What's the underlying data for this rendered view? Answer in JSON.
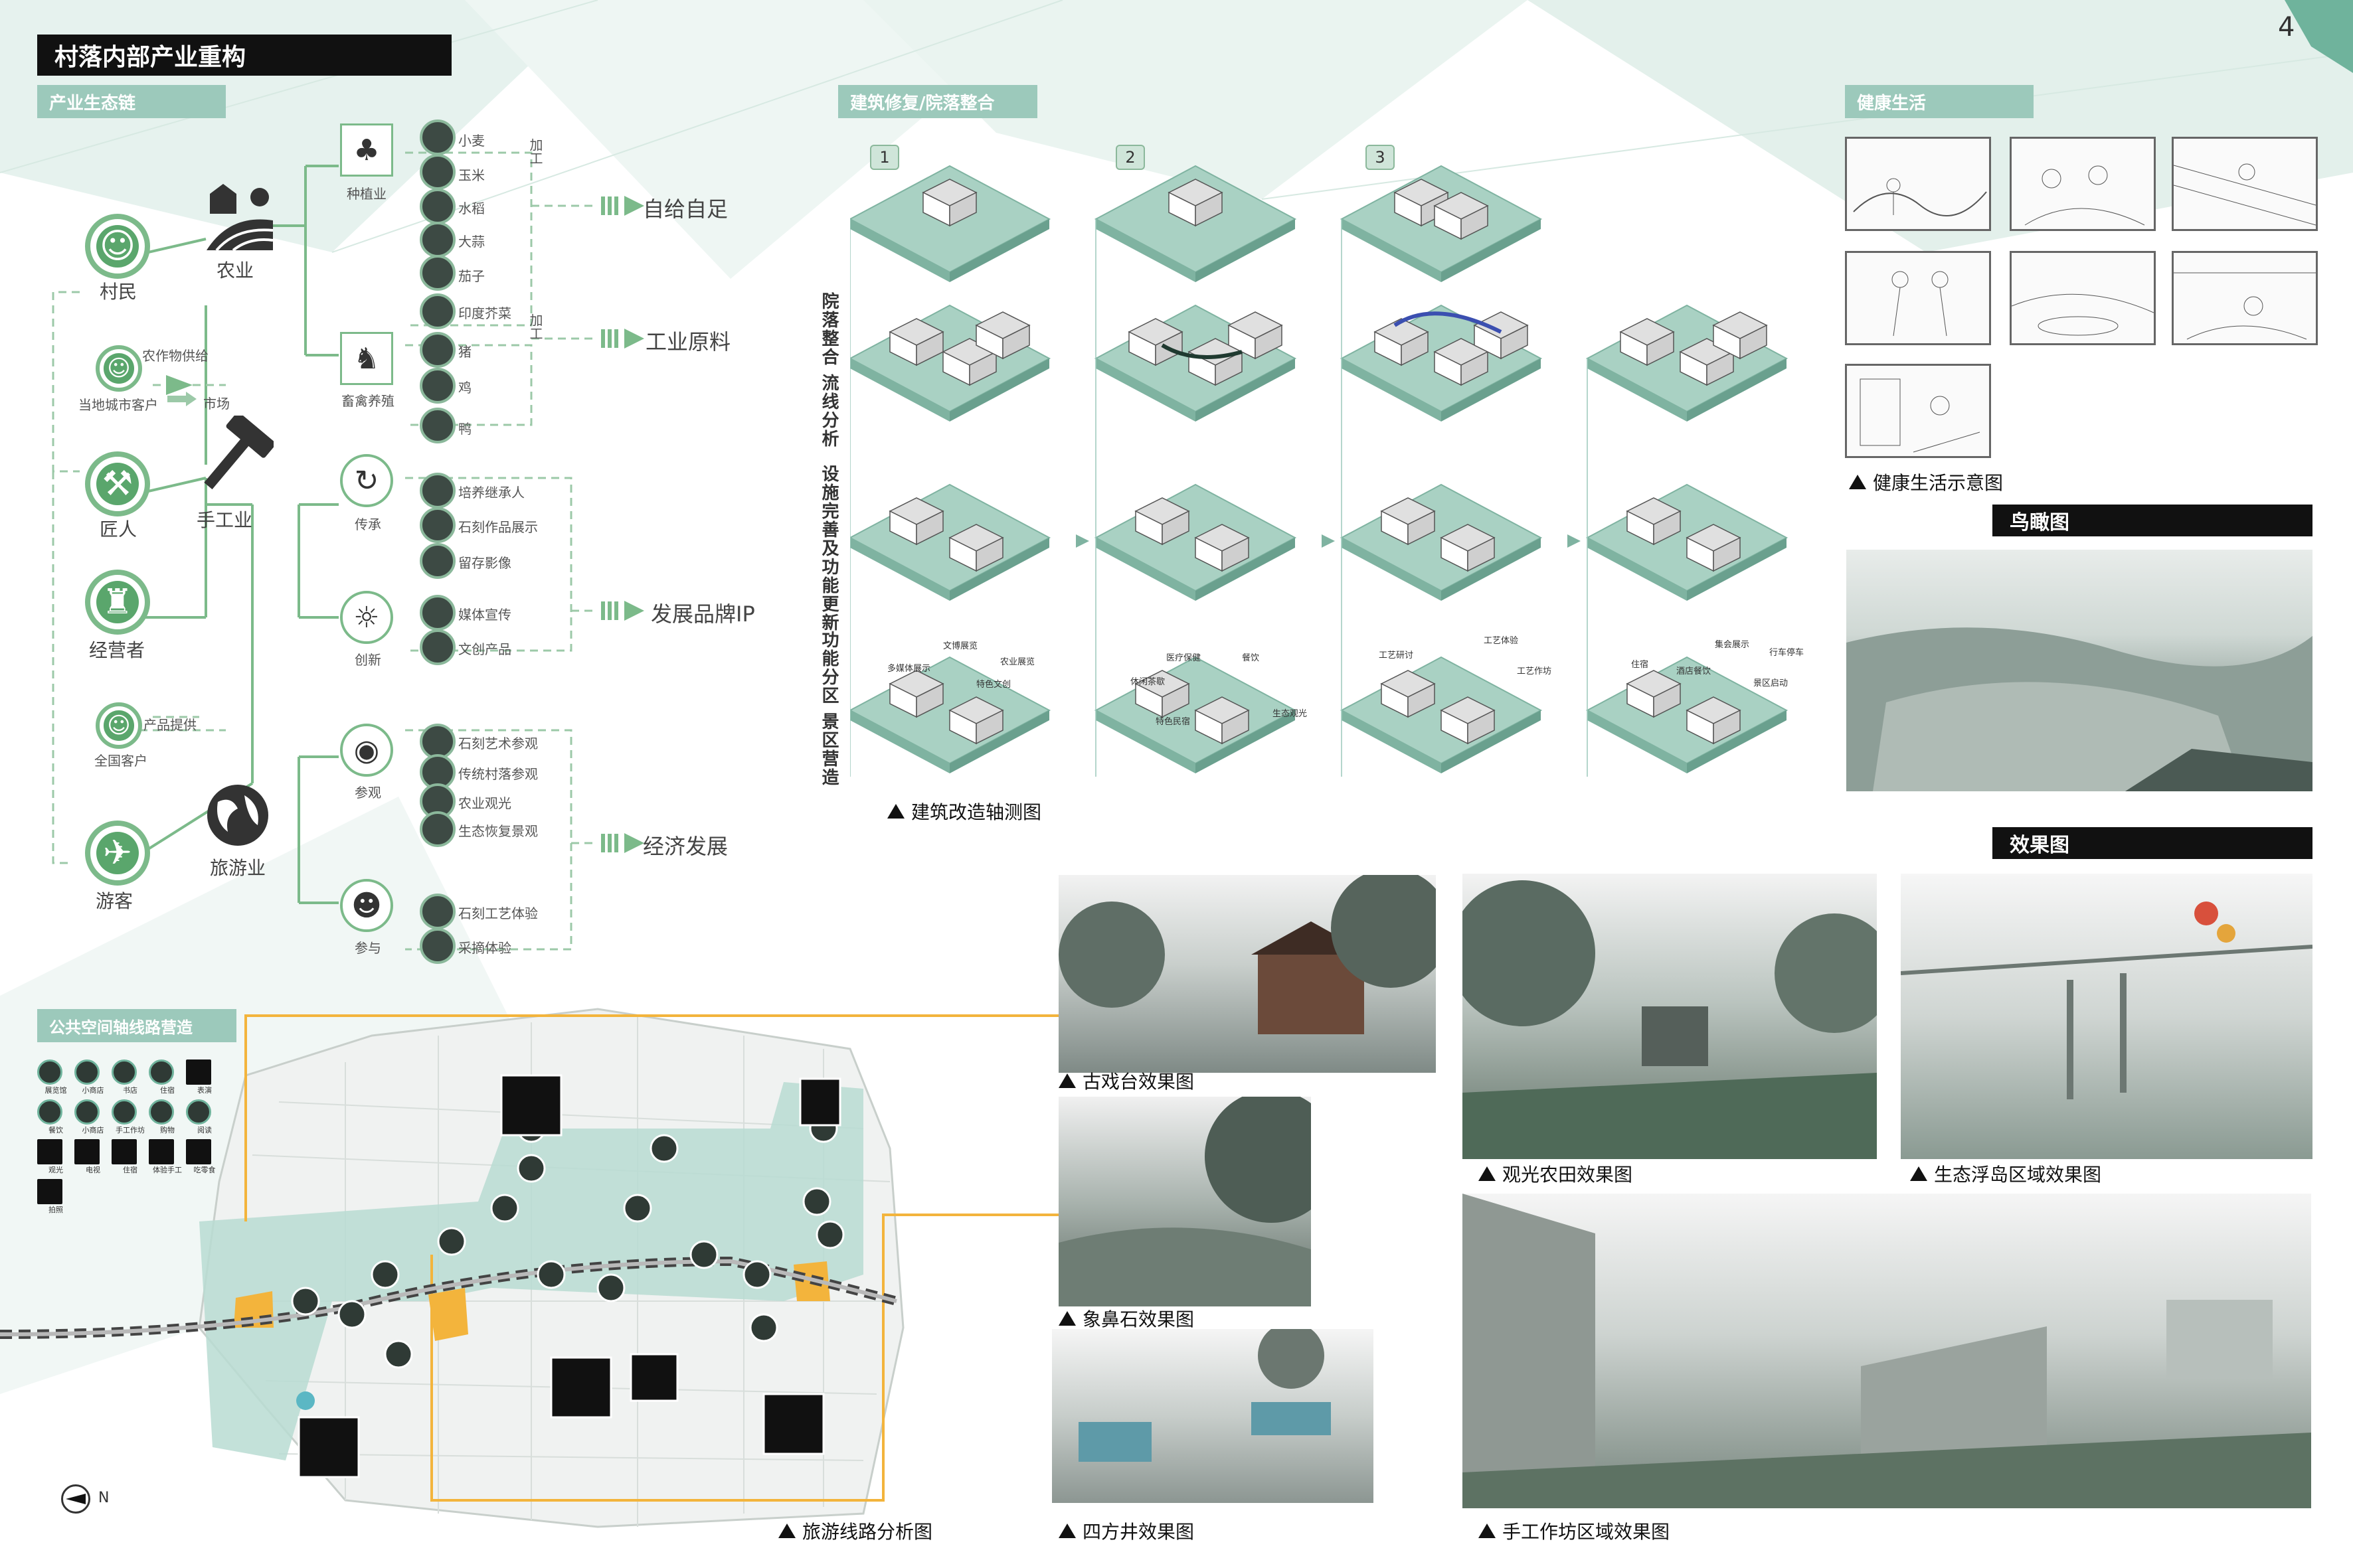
{
  "page_number": "4",
  "headers": {
    "main_title": "村落内部产业重构",
    "industry_chain": "产业生态链",
    "arch_repair": "建筑修复/院落整合",
    "healthy_life": "健康生活",
    "public_space": "公共空间轴线路营造",
    "birdseye": "鸟瞰图",
    "renderings": "效果图"
  },
  "ecology_chain": {
    "actors": [
      "村民",
      "当地城市客户",
      "匠人",
      "经营者",
      "全国客户",
      "游客"
    ],
    "sectors": [
      "农业",
      "手工业",
      "旅游业"
    ],
    "mid_labels": {
      "crop_supply": "农作物供给",
      "market": "市场",
      "product_supply": "产品提供",
      "process1": "加工",
      "process2": "加工"
    },
    "groups": [
      {
        "name": "种植业",
        "items": [
          "小麦",
          "玉米",
          "水稻",
          "大蒜",
          "茄子",
          "印度芥菜"
        ]
      },
      {
        "name": "畜禽养殖",
        "items": [
          "猪",
          "鸡",
          "鸭"
        ]
      },
      {
        "name": "传承",
        "items": [
          "培养继承人",
          "石刻作品展示",
          "留存影像"
        ]
      },
      {
        "name": "创新",
        "items": [
          "媒体宣传",
          "文创产品"
        ]
      },
      {
        "name": "参观",
        "items": [
          "石刻艺术参观",
          "传统村落参观",
          "农业观光",
          "生态恢复景观"
        ]
      },
      {
        "name": "参与",
        "items": [
          "石刻工艺体验",
          "采摘体验"
        ]
      }
    ],
    "outcomes": [
      "自给自足",
      "工业原料",
      "发展品牌IP",
      "经济发展"
    ]
  },
  "arch_diagram": {
    "steps": [
      "1",
      "2",
      "3"
    ],
    "row_labels": [
      "院落整合 流线分析",
      "设施完善及功能更新",
      "功能分区 景区营造"
    ],
    "caption": "建筑改造轴测图",
    "facility_labels": [
      "文博展览",
      "多媒体展示",
      "农业展览",
      "特色文创",
      "医疗保健",
      "餐饮",
      "休闲茶歇",
      "特色民宿",
      "生态观光",
      "工艺研讨",
      "工艺体验",
      "工艺作坊",
      "住宿",
      "酒店餐饮",
      "集会展示",
      "行车停车",
      "景区启动"
    ]
  },
  "healthy_life_caption": "健康生活示意图",
  "map": {
    "legend": [
      "展览馆",
      "小商店",
      "书店",
      "住宿",
      "表演",
      "餐饮",
      "小商店",
      "手工作坊",
      "购物",
      "阅读",
      "观光",
      "电视",
      "住宿",
      "体验手工",
      "吃零食",
      "拍照"
    ],
    "north": "N",
    "caption": "旅游线路分析图"
  },
  "render_captions": [
    "古戏台效果图",
    "象鼻石效果图",
    "四方井效果图",
    "观光农田效果图",
    "生态浮岛区域效果图",
    "手工作坊区域效果图"
  ]
}
